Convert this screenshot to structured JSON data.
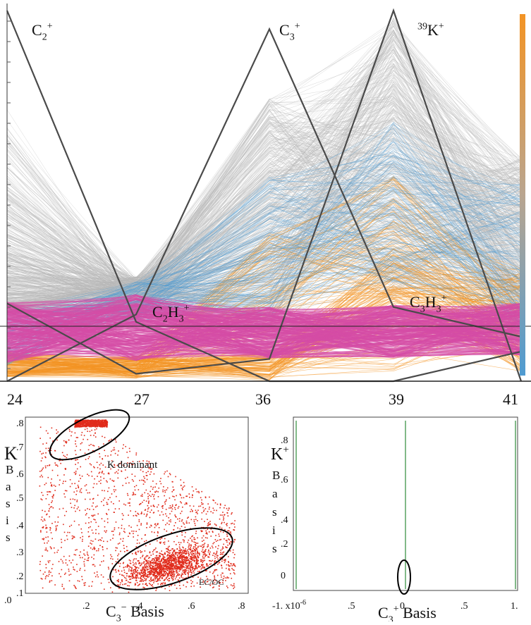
{
  "figure": {
    "colors": {
      "carbon_band": "#d64ca6",
      "gray_lines": "#b8b8b8",
      "orange": "#f39425",
      "blue": "#4f9bd1",
      "scatter": "#e02a1a",
      "green_line": "#2e8b3a",
      "dark_line": "#4a4a4a"
    }
  },
  "chart_data": [
    {
      "type": "line",
      "subtype": "parallel-coordinates",
      "x_ticks": [
        "24",
        "27",
        "36",
        "39",
        "41"
      ],
      "annotations": [
        {
          "id": "c2",
          "base": "C",
          "sub": "2",
          "sup": "+"
        },
        {
          "id": "c3",
          "base": "C",
          "sub": "3",
          "sup": "+"
        },
        {
          "id": "k39",
          "pre_sup": "39",
          "base": "K",
          "sup": "+"
        },
        {
          "id": "c2h3",
          "base": "C",
          "sub": "2",
          "base2": "H",
          "sub2": "3",
          "sup": "+"
        },
        {
          "id": "c3h3",
          "base": "C",
          "sub": "3",
          "base2": "H",
          "sub2": "3",
          "sup": "+"
        }
      ],
      "series": [
        {
          "id": "c2_basis",
          "values": [
            1.0,
            0.16,
            0.0,
            0.0,
            0.08
          ]
        },
        {
          "id": "c3_basis",
          "values": [
            0.0,
            0.18,
            0.95,
            0.2,
            0.12
          ]
        },
        {
          "id": "k_basis",
          "values": [
            0.21,
            0.02,
            0.06,
            1.0,
            0.0
          ]
        }
      ],
      "colorbar": {
        "from": "orange",
        "via": "gray",
        "to": "blue"
      }
    },
    {
      "type": "scatter",
      "xlabel": {
        "base": "C",
        "sub": "3",
        "sup": "−",
        "rest": " Basis"
      },
      "ylabel": {
        "base": "K",
        "vertical": [
          "B",
          "a",
          "s",
          "i",
          "s"
        ]
      },
      "x_ticks": [
        ".2",
        ".4",
        ".6",
        ".8"
      ],
      "y_ticks": [
        ".8",
        ".7",
        ".6",
        ".5",
        ".4",
        ".3",
        ".2",
        ".1",
        ".0"
      ],
      "xlim": [
        0.0,
        0.82
      ],
      "ylim": [
        0.06,
        0.82
      ],
      "annotations": [
        "K dominant",
        "EC/OC"
      ],
      "point_color": "#e02a1a"
    },
    {
      "type": "line",
      "xlabel": {
        "base": "C",
        "sub": "3",
        "sup": "+",
        "rest": " Basis"
      },
      "ylabel": {
        "base": "K",
        "sup": "+",
        "vertical": [
          "B",
          "a",
          "s",
          "i",
          "s"
        ]
      },
      "x_ticks": [
        "-1. x10",
        ".5",
        "0",
        ".5",
        "1."
      ],
      "x_tick_exp": "-6",
      "y_ticks": [
        ".8",
        ".6",
        ".4",
        ".2",
        "0"
      ],
      "xlim": [
        -1.0,
        1.0
      ],
      "ylim": [
        -0.08,
        0.95
      ],
      "vertical_lines_x": [
        -1.0,
        0.0,
        1.0
      ]
    }
  ]
}
